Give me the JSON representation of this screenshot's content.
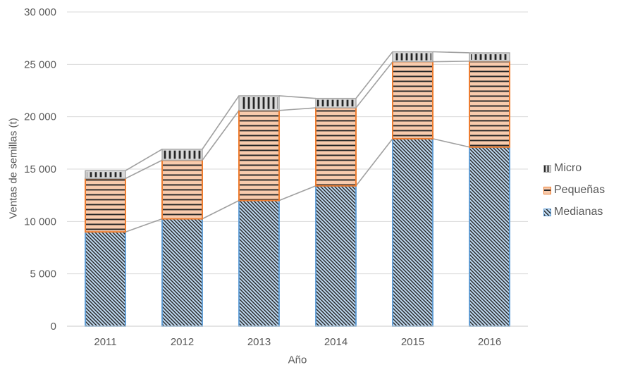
{
  "colors": {
    "medianas_fill": "#BDD7EE",
    "medianas_border": "#5B9BD5",
    "pequenas_fill": "#F8CBAD",
    "pequenas_border": "#ED7D31",
    "micro_fill": "#D9D9D9",
    "micro_border": "#A6A6A6",
    "hatch": "#262626",
    "gridline": "#D9D9D9",
    "axis_line": "#D3D3D3",
    "series_line": "#A0A0A0",
    "text": "#595959"
  },
  "chart_data": {
    "type": "bar",
    "stacked": true,
    "series_lines": true,
    "title": "",
    "xlabel": "Año",
    "ylabel": "Ventas de semillas (t)",
    "categories": [
      "2011",
      "2012",
      "2013",
      "2014",
      "2015",
      "2016"
    ],
    "series": [
      {
        "name": "Medianas",
        "key": "medianas",
        "values": [
          9000,
          10250,
          12000,
          13400,
          17900,
          17100
        ]
      },
      {
        "name": "Pequeñas",
        "key": "pequenas",
        "values": [
          5100,
          5600,
          8600,
          7450,
          7350,
          8200
        ]
      },
      {
        "name": "Micro",
        "key": "micro",
        "values": [
          750,
          1050,
          1400,
          900,
          950,
          800
        ]
      }
    ],
    "stack_totals": [
      14850,
      16900,
      22000,
      21750,
      26200,
      26100
    ],
    "ylim": [
      0,
      30000
    ],
    "yticks": [
      0,
      5000,
      10000,
      15000,
      20000,
      25000,
      30000
    ],
    "ytick_labels": [
      "0",
      "5 000",
      "10 000",
      "15 000",
      "20 000",
      "25 000",
      "30 000"
    ],
    "grid": true,
    "legend_position": "right",
    "legend": [
      {
        "label": "Micro",
        "key": "micro"
      },
      {
        "label": "Pequeñas",
        "key": "pequenas"
      },
      {
        "label": "Medianas",
        "key": "medianas"
      }
    ]
  }
}
